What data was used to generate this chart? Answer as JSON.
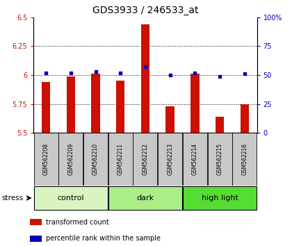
{
  "title": "GDS3933 / 246533_at",
  "samples": [
    "GSM562208",
    "GSM562209",
    "GSM562210",
    "GSM562211",
    "GSM562212",
    "GSM562213",
    "GSM562214",
    "GSM562215",
    "GSM562216"
  ],
  "transformed_count": [
    5.94,
    5.99,
    6.01,
    5.95,
    6.44,
    5.73,
    6.01,
    5.64,
    5.75
  ],
  "percentile_rank": [
    52,
    52,
    53,
    52,
    57,
    50,
    52,
    49,
    51
  ],
  "ylim_left": [
    5.5,
    6.5
  ],
  "ylim_right": [
    0,
    100
  ],
  "yticks_left": [
    5.5,
    5.75,
    6.0,
    6.25,
    6.5
  ],
  "yticks_right": [
    0,
    25,
    50,
    75,
    100
  ],
  "ytick_labels_left": [
    "5.5",
    "5.75",
    "6",
    "6.25",
    "6.5"
  ],
  "ytick_labels_right": [
    "0",
    "25",
    "50",
    "75",
    "100%"
  ],
  "groups": [
    {
      "label": "control",
      "start": 0,
      "end": 2,
      "color": "#d8f5c0"
    },
    {
      "label": "dark",
      "start": 3,
      "end": 5,
      "color": "#aaee88"
    },
    {
      "label": "high light",
      "start": 6,
      "end": 8,
      "color": "#55dd33"
    }
  ],
  "bar_color": "#cc1100",
  "dot_color": "#0000bb",
  "bar_width": 0.35,
  "stress_label": "stress",
  "legend_bar_label": "transformed count",
  "legend_dot_label": "percentile rank within the sample",
  "sample_bg": "#c8c8c8",
  "outer_border_color": "#000000"
}
